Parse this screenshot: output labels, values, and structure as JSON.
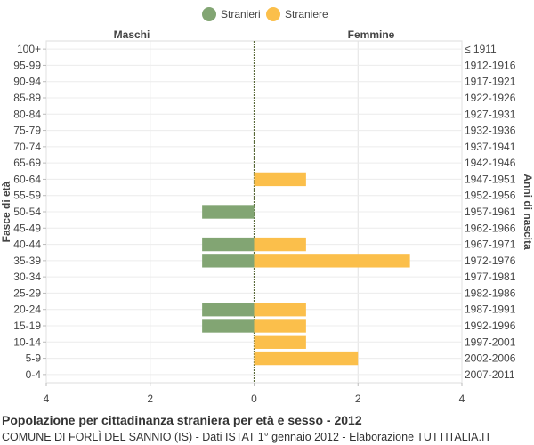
{
  "chart_data": {
    "type": "bar",
    "orientation": "horizontal",
    "legend": {
      "position": "top-center",
      "items": [
        {
          "name": "Stranieri",
          "color": "#82a573"
        },
        {
          "name": "Straniere",
          "color": "#fbbf4b"
        }
      ]
    },
    "left_header": "Maschi",
    "right_header": "Femmine",
    "ylabel_left": "Fasce di età",
    "ylabel_right": "Anni di nascita",
    "xlim": [
      -4,
      4
    ],
    "x_ticks": [
      "4",
      "2",
      "0",
      "2",
      "4"
    ],
    "grid": true,
    "categories": [
      "100+",
      "95-99",
      "90-94",
      "85-89",
      "80-84",
      "75-79",
      "70-74",
      "65-69",
      "60-64",
      "55-59",
      "50-54",
      "45-49",
      "40-44",
      "35-39",
      "30-34",
      "25-29",
      "20-24",
      "15-19",
      "10-14",
      "5-9",
      "0-4"
    ],
    "birth_years": [
      "≤ 1911",
      "1912-1916",
      "1917-1921",
      "1922-1926",
      "1927-1931",
      "1932-1936",
      "1937-1941",
      "1942-1946",
      "1947-1951",
      "1952-1956",
      "1957-1961",
      "1962-1966",
      "1967-1971",
      "1972-1976",
      "1977-1981",
      "1982-1986",
      "1987-1991",
      "1992-1996",
      "1997-2001",
      "2002-2006",
      "2007-2011"
    ],
    "series": [
      {
        "name": "Stranieri",
        "side": "left",
        "color": "#82a573",
        "values": [
          0,
          0,
          0,
          0,
          0,
          0,
          0,
          0,
          0,
          0,
          1,
          0,
          1,
          1,
          0,
          0,
          1,
          1,
          0,
          0,
          0
        ]
      },
      {
        "name": "Straniere",
        "side": "right",
        "color": "#fbbf4b",
        "values": [
          0,
          0,
          0,
          0,
          0,
          0,
          0,
          0,
          1,
          0,
          0,
          0,
          1,
          3,
          0,
          0,
          1,
          1,
          1,
          2,
          0
        ]
      }
    ]
  },
  "footer": {
    "title": "Popolazione per cittadinanza straniera per età e sesso - 2012",
    "subtitle": "COMUNE DI FORLÌ DEL SANNIO (IS) - Dati ISTAT 1° gennaio 2012 - Elaborazione TUTTITALIA.IT"
  }
}
